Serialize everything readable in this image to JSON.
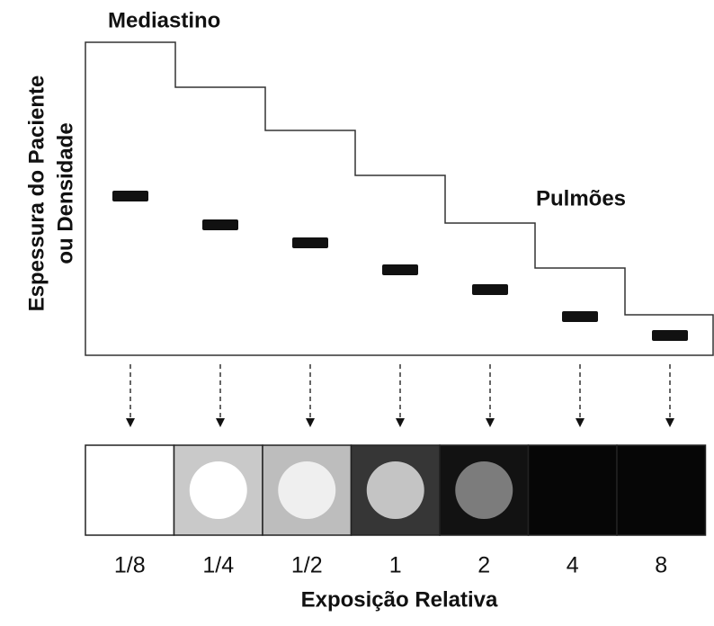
{
  "labels": {
    "top": "Mediastino",
    "lower": "Pulmões"
  },
  "y_axis": {
    "line1": "Espessura do Paciente",
    "line2": "ou Densidade"
  },
  "exposure": {
    "title": "Exposição Relativa",
    "levels": [
      "1/8",
      "1/4",
      "1/2",
      "1",
      "2",
      "4",
      "8"
    ]
  }
}
